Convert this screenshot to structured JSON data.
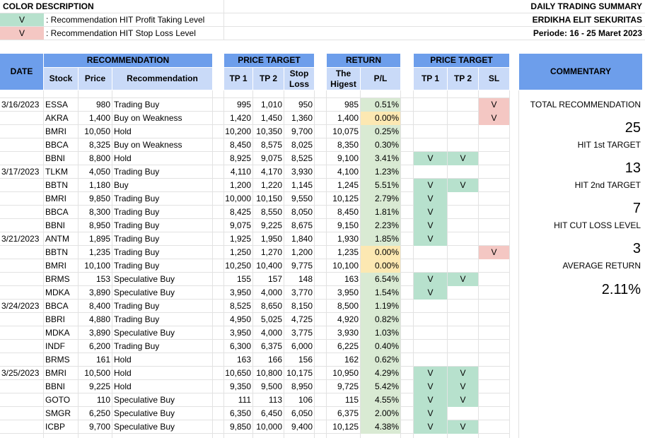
{
  "legend": {
    "title": "COLOR DESCRIPTION",
    "items": [
      {
        "mark": "V",
        "text": ": Recommendation HIT Profit Taking Level"
      },
      {
        "mark": "V",
        "text": ": Recommendation HIT Stop Loss Level"
      }
    ]
  },
  "report": {
    "title": "DAILY TRADING SUMMARY",
    "company": "ERDIKHA ELIT SEKURITAS",
    "period": "Periode: 16 - 25 Maret 2023"
  },
  "headers": {
    "date": "DATE",
    "recommendation_group": "RECOMMENDATION",
    "stock": "Stock",
    "price": "Price",
    "recommendation": "Recommendation",
    "price_target_group": "PRICE TARGET",
    "tp1": "TP 1",
    "tp2": "TP 2",
    "stop_loss": "Stop Loss",
    "return_group": "RETURN",
    "the_highest": "The Higest",
    "pl": "P/L",
    "hit_group": "PRICE TARGET",
    "hit_tp1": "TP 1",
    "hit_tp2": "TP 2",
    "hit_sl": "SL",
    "commentary": "COMMENTARY"
  },
  "rows": [
    {
      "date": "3/16/2023",
      "stock": "ESSA",
      "price": "980",
      "rec": "Trading Buy",
      "tp1": "995",
      "tp2": "1,010",
      "sl": "950",
      "high": "985",
      "pl": "0.51%",
      "pl_color": "green",
      "h1": "",
      "h2": "",
      "hs": "V"
    },
    {
      "date": "",
      "stock": "AKRA",
      "price": "1,400",
      "rec": "Buy on Weakness",
      "tp1": "1,420",
      "tp2": "1,450",
      "sl": "1,360",
      "high": "1,400",
      "pl": "0.00%",
      "pl_color": "yellow",
      "h1": "",
      "h2": "",
      "hs": "V"
    },
    {
      "date": "",
      "stock": "BMRI",
      "price": "10,050",
      "rec": "Hold",
      "tp1": "10,200",
      "tp2": "10,350",
      "sl": "9,700",
      "high": "10,075",
      "pl": "0.25%",
      "pl_color": "green",
      "h1": "",
      "h2": "",
      "hs": ""
    },
    {
      "date": "",
      "stock": "BBCA",
      "price": "8,325",
      "rec": "Buy on Weakness",
      "tp1": "8,450",
      "tp2": "8,575",
      "sl": "8,025",
      "high": "8,350",
      "pl": "0.30%",
      "pl_color": "green",
      "h1": "",
      "h2": "",
      "hs": ""
    },
    {
      "date": "",
      "stock": "BBNI",
      "price": "8,800",
      "rec": "Hold",
      "tp1": "8,925",
      "tp2": "9,075",
      "sl": "8,525",
      "high": "9,100",
      "pl": "3.41%",
      "pl_color": "green",
      "h1": "V",
      "h2": "V",
      "hs": ""
    },
    {
      "date": "3/17/2023",
      "stock": "TLKM",
      "price": "4,050",
      "rec": "Trading Buy",
      "tp1": "4,110",
      "tp2": "4,170",
      "sl": "3,930",
      "high": "4,100",
      "pl": "1.23%",
      "pl_color": "green",
      "h1": "",
      "h2": "",
      "hs": ""
    },
    {
      "date": "",
      "stock": "BBTN",
      "price": "1,180",
      "rec": "Buy",
      "tp1": "1,200",
      "tp2": "1,220",
      "sl": "1,145",
      "high": "1,245",
      "pl": "5.51%",
      "pl_color": "green",
      "h1": "V",
      "h2": "V",
      "hs": ""
    },
    {
      "date": "",
      "stock": "BMRI",
      "price": "9,850",
      "rec": "Trading Buy",
      "tp1": "10,000",
      "tp2": "10,150",
      "sl": "9,550",
      "high": "10,125",
      "pl": "2.79%",
      "pl_color": "green",
      "h1": "V",
      "h2": "",
      "hs": ""
    },
    {
      "date": "",
      "stock": "BBCA",
      "price": "8,300",
      "rec": "Trading Buy",
      "tp1": "8,425",
      "tp2": "8,550",
      "sl": "8,050",
      "high": "8,450",
      "pl": "1.81%",
      "pl_color": "green",
      "h1": "V",
      "h2": "",
      "hs": ""
    },
    {
      "date": "",
      "stock": "BBNI",
      "price": "8,950",
      "rec": "Trading Buy",
      "tp1": "9,075",
      "tp2": "9,225",
      "sl": "8,675",
      "high": "9,150",
      "pl": "2.23%",
      "pl_color": "green",
      "h1": "V",
      "h2": "",
      "hs": ""
    },
    {
      "date": "3/21/2023",
      "stock": "ANTM",
      "price": "1,895",
      "rec": "Trading Buy",
      "tp1": "1,925",
      "tp2": "1,950",
      "sl": "1,840",
      "high": "1,930",
      "pl": "1.85%",
      "pl_color": "green",
      "h1": "V",
      "h2": "",
      "hs": ""
    },
    {
      "date": "",
      "stock": "BBTN",
      "price": "1,235",
      "rec": "Trading Buy",
      "tp1": "1,250",
      "tp2": "1,270",
      "sl": "1,200",
      "high": "1,235",
      "pl": "0.00%",
      "pl_color": "yellow",
      "h1": "",
      "h2": "",
      "hs": "V"
    },
    {
      "date": "",
      "stock": "BMRI",
      "price": "10,100",
      "rec": "Trading Buy",
      "tp1": "10,250",
      "tp2": "10,400",
      "sl": "9,775",
      "high": "10,100",
      "pl": "0.00%",
      "pl_color": "yellow",
      "h1": "",
      "h2": "",
      "hs": ""
    },
    {
      "date": "",
      "stock": "BRMS",
      "price": "153",
      "rec": "Speculative Buy",
      "tp1": "155",
      "tp2": "157",
      "sl": "148",
      "high": "163",
      "pl": "6.54%",
      "pl_color": "green",
      "h1": "V",
      "h2": "V",
      "hs": ""
    },
    {
      "date": "",
      "stock": "MDKA",
      "price": "3,890",
      "rec": "Speculative Buy",
      "tp1": "3,950",
      "tp2": "4,000",
      "sl": "3,770",
      "high": "3,950",
      "pl": "1.54%",
      "pl_color": "green",
      "h1": "V",
      "h2": "",
      "hs": ""
    },
    {
      "date": "3/24/2023",
      "stock": "BBCA",
      "price": "8,400",
      "rec": "Trading Buy",
      "tp1": "8,525",
      "tp2": "8,650",
      "sl": "8,150",
      "high": "8,500",
      "pl": "1.19%",
      "pl_color": "green",
      "h1": "",
      "h2": "",
      "hs": ""
    },
    {
      "date": "",
      "stock": "BBRI",
      "price": "4,880",
      "rec": "Trading Buy",
      "tp1": "4,950",
      "tp2": "5,025",
      "sl": "4,725",
      "high": "4,920",
      "pl": "0.82%",
      "pl_color": "green",
      "h1": "",
      "h2": "",
      "hs": ""
    },
    {
      "date": "",
      "stock": "MDKA",
      "price": "3,890",
      "rec": "Speculative Buy",
      "tp1": "3,950",
      "tp2": "4,000",
      "sl": "3,775",
      "high": "3,930",
      "pl": "1.03%",
      "pl_color": "green",
      "h1": "",
      "h2": "",
      "hs": ""
    },
    {
      "date": "",
      "stock": "INDF",
      "price": "6,200",
      "rec": "Trading Buy",
      "tp1": "6,300",
      "tp2": "6,375",
      "sl": "6,000",
      "high": "6,225",
      "pl": "0.40%",
      "pl_color": "green",
      "h1": "",
      "h2": "",
      "hs": ""
    },
    {
      "date": "",
      "stock": "BRMS",
      "price": "161",
      "rec": "Hold",
      "tp1": "163",
      "tp2": "166",
      "sl": "156",
      "high": "162",
      "pl": "0.62%",
      "pl_color": "green",
      "h1": "",
      "h2": "",
      "hs": ""
    },
    {
      "date": "3/25/2023",
      "stock": "BMRI",
      "price": "10,500",
      "rec": "Hold",
      "tp1": "10,650",
      "tp2": "10,800",
      "sl": "10,175",
      "high": "10,950",
      "pl": "4.29%",
      "pl_color": "green",
      "h1": "V",
      "h2": "V",
      "hs": ""
    },
    {
      "date": "",
      "stock": "BBNI",
      "price": "9,225",
      "rec": "Hold",
      "tp1": "9,350",
      "tp2": "9,500",
      "sl": "8,950",
      "high": "9,725",
      "pl": "5.42%",
      "pl_color": "green",
      "h1": "V",
      "h2": "V",
      "hs": ""
    },
    {
      "date": "",
      "stock": "GOTO",
      "price": "110",
      "rec": "Speculative Buy",
      "tp1": "111",
      "tp2": "113",
      "sl": "106",
      "high": "115",
      "pl": "4.55%",
      "pl_color": "green",
      "h1": "V",
      "h2": "V",
      "hs": ""
    },
    {
      "date": "",
      "stock": "SMGR",
      "price": "6,250",
      "rec": "Speculative Buy",
      "tp1": "6,350",
      "tp2": "6,450",
      "sl": "6,050",
      "high": "6,375",
      "pl": "2.00%",
      "pl_color": "green",
      "h1": "V",
      "h2": "",
      "hs": ""
    },
    {
      "date": "",
      "stock": "ICBP",
      "price": "9,700",
      "rec": "Speculative Buy",
      "tp1": "9,850",
      "tp2": "10,000",
      "sl": "9,400",
      "high": "10,125",
      "pl": "4.38%",
      "pl_color": "green",
      "h1": "V",
      "h2": "V",
      "hs": ""
    }
  ],
  "commentary": {
    "total_label": "TOTAL RECOMMENDATION",
    "total_value": "25",
    "hit1_label": "HIT 1st TARGET",
    "hit1_value": "13",
    "hit2_label": "HIT 2nd TARGET",
    "hit2_value": "7",
    "cut_label": "HIT CUT LOSS LEVEL",
    "cut_value": "3",
    "avg_label": "AVERAGE RETURN",
    "avg_value": "2.11%"
  },
  "colors": {
    "header": "#6d9eeb",
    "subheader": "#c9daf8",
    "hit_green": "#b7e1cd",
    "stop_red": "#f4c7c3",
    "pl_green": "#d9ead3",
    "pl_yellow": "#fce8b2"
  }
}
